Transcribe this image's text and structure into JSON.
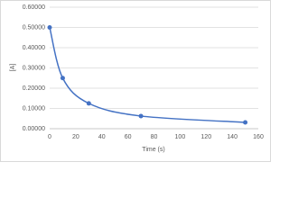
{
  "chart_data": {
    "type": "scatter",
    "x_label": "Time (s)",
    "y_label": "[A]",
    "series": [
      {
        "color": "#4472c4",
        "x": [
          0,
          10,
          30,
          70,
          150
        ],
        "values": [
          0.5,
          0.25,
          0.125,
          0.0625,
          0.03125
        ]
      }
    ],
    "xlim": [
      0,
      160
    ],
    "xticks": [
      0,
      20,
      40,
      60,
      80,
      100,
      120,
      140,
      160
    ],
    "ylim": [
      0,
      0.6
    ],
    "yticks": [
      {
        "value": 0,
        "label": "0.00000"
      },
      {
        "value": 0.1,
        "label": "0.10000"
      },
      {
        "value": 0.2,
        "label": "0.20000"
      },
      {
        "value": 0.3,
        "label": "0.30000"
      },
      {
        "value": 0.4,
        "label": "0.40000"
      },
      {
        "value": 0.5,
        "label": "0.50000"
      },
      {
        "value": 0.6,
        "label": "0.60000"
      }
    ],
    "grid": true,
    "smooth": true
  }
}
